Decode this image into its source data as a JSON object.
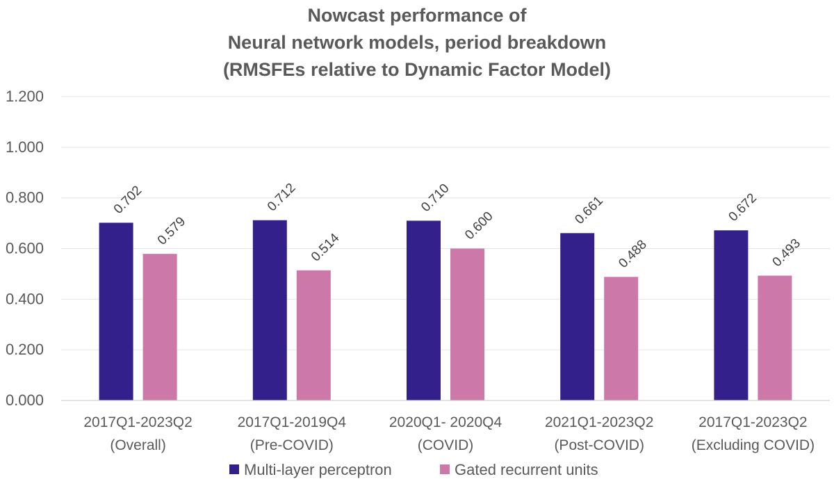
{
  "chart_data": {
    "type": "bar",
    "title_lines": [
      "Nowcast performance of",
      "Neural network models, period breakdown",
      "(RMSFEs relative to Dynamic Factor Model)"
    ],
    "categories": [
      [
        "2017Q1-2023Q2",
        "(Overall)"
      ],
      [
        "2017Q1-2019Q4",
        "(Pre-COVID)"
      ],
      [
        "2020Q1- 2020Q4",
        "(COVID)"
      ],
      [
        "2021Q1-2023Q2",
        "(Post-COVID)"
      ],
      [
        "2017Q1-2023Q2",
        "(Excluding COVID)"
      ]
    ],
    "series": [
      {
        "name": "Multi-layer perceptron",
        "color": "#33208a",
        "values": [
          0.702,
          0.712,
          0.71,
          0.661,
          0.672
        ],
        "labels": [
          "0.702",
          "0.712",
          "0.710",
          "0.661",
          "0.672"
        ]
      },
      {
        "name": "Gated recurrent units",
        "color": "#cc78a8",
        "values": [
          0.579,
          0.514,
          0.6,
          0.488,
          0.493
        ],
        "labels": [
          "0.579",
          "0.514",
          "0.600",
          "0.488",
          "0.493"
        ]
      }
    ],
    "yticks": [
      "0.000",
      "0.200",
      "0.400",
      "0.600",
      "0.800",
      "1.000",
      "1.200"
    ],
    "ylim": [
      0,
      1.2
    ],
    "xlabel": "",
    "ylabel": "",
    "grid": true,
    "legend_position": "bottom-center"
  }
}
